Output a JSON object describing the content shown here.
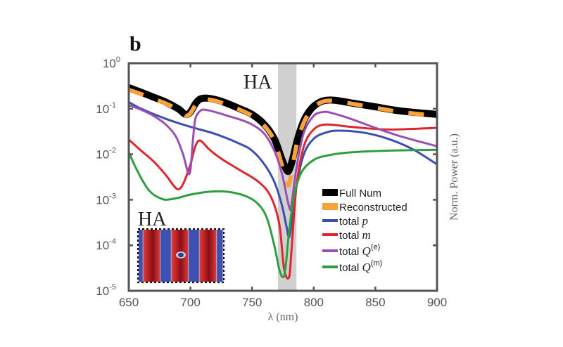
{
  "chart_data": {
    "type": "line",
    "panel_label": "b",
    "title": "",
    "xlabel": "λ (nm)",
    "ylabel": "Norm. Power (a.u.)",
    "xlim": [
      650,
      900
    ],
    "ylim": [
      1e-05,
      1
    ],
    "yscale": "log",
    "x_ticks": [
      650,
      700,
      750,
      800,
      850,
      900
    ],
    "y_ticks": [
      {
        "base": "10",
        "exp": "0",
        "value": 1
      },
      {
        "base": "10",
        "exp": "-1",
        "value": 0.1
      },
      {
        "base": "10",
        "exp": "-2",
        "value": 0.01
      },
      {
        "base": "10",
        "exp": "-3",
        "value": 0.001
      },
      {
        "base": "10",
        "exp": "-4",
        "value": 0.0001
      },
      {
        "base": "10",
        "exp": "-5",
        "value": 1e-05
      }
    ],
    "grid": false,
    "legend_position": "bottom-right",
    "shaded_band": {
      "label": "HA",
      "x_range": [
        771,
        786
      ],
      "color": "#d0d0d0"
    },
    "inset": {
      "label": "HA",
      "description": "field map with alternating red/blue vertical stripes"
    },
    "series": [
      {
        "name": "Full Num",
        "label_prefix": "Full Num",
        "label_symbol": "",
        "label_sup": "",
        "color": "#000000",
        "style": "thick",
        "x": [
          650,
          660,
          670,
          680,
          690,
          696,
          700,
          705,
          710,
          720,
          730,
          740,
          750,
          760,
          768,
          774,
          778,
          780,
          783,
          787,
          792,
          798,
          805,
          812,
          820,
          830,
          850,
          870,
          900
        ],
        "y": [
          0.29,
          0.23,
          0.18,
          0.14,
          0.1,
          0.075,
          0.085,
          0.14,
          0.17,
          0.16,
          0.13,
          0.1,
          0.075,
          0.045,
          0.022,
          0.008,
          0.0045,
          0.0045,
          0.008,
          0.022,
          0.055,
          0.1,
          0.14,
          0.155,
          0.15,
          0.135,
          0.11,
          0.09,
          0.075
        ]
      },
      {
        "name": "Reconstructed",
        "label_prefix": "Reconstructed",
        "label_symbol": "",
        "label_sup": "",
        "color": "#f7a23b",
        "style": "dashed",
        "x": [
          650,
          660,
          670,
          680,
          690,
          696,
          700,
          705,
          710,
          720,
          730,
          740,
          750,
          760,
          768,
          774,
          778,
          780,
          783,
          787,
          792,
          798,
          805,
          812,
          820,
          830,
          850,
          870,
          900
        ],
        "y": [
          0.26,
          0.21,
          0.165,
          0.13,
          0.095,
          0.07,
          0.08,
          0.13,
          0.16,
          0.15,
          0.12,
          0.095,
          0.07,
          0.042,
          0.02,
          0.006,
          0.0025,
          0.0022,
          0.006,
          0.02,
          0.05,
          0.095,
          0.135,
          0.15,
          0.145,
          0.13,
          0.105,
          0.085,
          0.07
        ]
      },
      {
        "name": "total p",
        "label_prefix": "total ",
        "label_symbol": "p",
        "label_sup": "",
        "color": "#3b4fb0",
        "style": "solid",
        "x": [
          650,
          660,
          680,
          700,
          720,
          740,
          750,
          760,
          768,
          774,
          778,
          780,
          782,
          786,
          792,
          800,
          810,
          820,
          840,
          860,
          880,
          900
        ],
        "y": [
          0.14,
          0.1,
          0.06,
          0.04,
          0.028,
          0.017,
          0.012,
          0.006,
          0.0025,
          0.0008,
          0.00025,
          0.00015,
          0.0003,
          0.002,
          0.01,
          0.022,
          0.03,
          0.033,
          0.03,
          0.022,
          0.013,
          0.006
        ]
      },
      {
        "name": "total m",
        "label_prefix": "total ",
        "label_symbol": "m",
        "label_sup": "",
        "color": "#e0262b",
        "style": "solid",
        "x": [
          650,
          660,
          670,
          680,
          686,
          690,
          694,
          700,
          704,
          708,
          715,
          725,
          740,
          755,
          765,
          772,
          776,
          780,
          782,
          786,
          792,
          800,
          810,
          830,
          860,
          900
        ],
        "y": [
          0.021,
          0.012,
          0.007,
          0.0035,
          0.0021,
          0.0017,
          0.0022,
          0.006,
          0.015,
          0.02,
          0.013,
          0.008,
          0.0045,
          0.0025,
          0.0012,
          0.0003,
          3e-05,
          2e-05,
          8e-05,
          0.002,
          0.015,
          0.035,
          0.045,
          0.04,
          0.035,
          0.038
        ]
      },
      {
        "name": "total Q(e)",
        "label_prefix": "total ",
        "label_symbol": "Q",
        "label_sup": "(e)",
        "color": "#9b4fb5",
        "style": "solid",
        "x": [
          650,
          660,
          670,
          680,
          688,
          694,
          698,
          700,
          702,
          704,
          708,
          712,
          720,
          730,
          740,
          750,
          760,
          768,
          774,
          780,
          782,
          786,
          792,
          800,
          808,
          815,
          830,
          850,
          870,
          900
        ],
        "y": [
          0.12,
          0.095,
          0.07,
          0.045,
          0.025,
          0.01,
          0.004,
          0.0045,
          0.02,
          0.06,
          0.09,
          0.095,
          0.085,
          0.07,
          0.058,
          0.045,
          0.028,
          0.012,
          0.004,
          0.0007,
          0.0008,
          0.005,
          0.03,
          0.07,
          0.085,
          0.08,
          0.06,
          0.038,
          0.025,
          0.015
        ]
      },
      {
        "name": "total Q(m)",
        "label_prefix": "total ",
        "label_symbol": "Q",
        "label_sup": "(m)",
        "color": "#2e9e3e",
        "style": "solid",
        "x": [
          650,
          655,
          660,
          665,
          670,
          675,
          680,
          690,
          700,
          715,
          730,
          745,
          755,
          762,
          768,
          772,
          775,
          777,
          780,
          784,
          790,
          800,
          812,
          830,
          860,
          900
        ],
        "y": [
          0.011,
          0.0055,
          0.003,
          0.0018,
          0.0013,
          0.0011,
          0.001,
          0.0011,
          0.0013,
          0.0015,
          0.0015,
          0.0012,
          0.0008,
          0.0004,
          0.0001,
          3e-05,
          2e-05,
          3e-05,
          0.0002,
          0.0012,
          0.004,
          0.0075,
          0.0095,
          0.011,
          0.012,
          0.0125
        ]
      }
    ]
  }
}
